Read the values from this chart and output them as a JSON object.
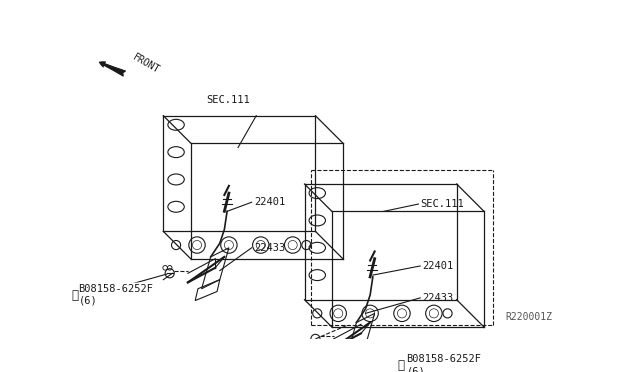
{
  "bg_color": "#ffffff",
  "line_color": "#1a1a1a",
  "title": "",
  "diagram_id": "R220001Z",
  "labels": {
    "bolt_left": "B08158-6252F\n(6)",
    "bolt_right": "B08158-6252F\n(6)",
    "coil_left": "22433",
    "plug_left": "22401",
    "coil_right": "22433",
    "plug_right": "22401",
    "sec_left": "SEC.111",
    "sec_right": "SEC.111",
    "front": "FRONT"
  }
}
